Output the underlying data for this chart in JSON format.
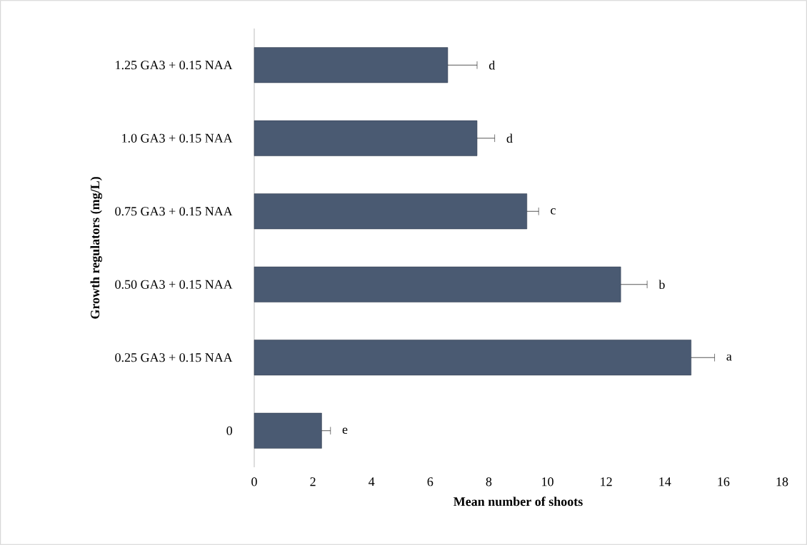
{
  "chart_data": {
    "type": "bar",
    "orientation": "horizontal",
    "xlabel": "Mean number  of shoots",
    "ylabel": "Growth regulators (mg/L)",
    "categories": [
      "1.25 GA3 + 0.15 NAA",
      "1.0 GA3 + 0.15 NAA",
      "0.75 GA3 + 0.15 NAA",
      "0.50 GA3 + 0.15 NAA",
      "0.25 GA3 + 0.15 NAA",
      "0"
    ],
    "values": [
      6.6,
      7.6,
      9.3,
      12.5,
      14.9,
      2.3
    ],
    "errors": [
      1.0,
      0.6,
      0.4,
      0.9,
      0.8,
      0.3
    ],
    "color": "#4a5a72",
    "xlim": [
      0,
      18
    ],
    "xticks": [
      0,
      2,
      4,
      6,
      8,
      10,
      12,
      14,
      16,
      18
    ],
    "grid": false,
    "annotations": [
      {
        "text": "d",
        "x": 7.6,
        "y": "1.25 GA3 + 0.15 NAA"
      },
      {
        "text": "d",
        "x": 8.2,
        "y": "1.0 GA3 + 0.15 NAA"
      },
      {
        "text": "c",
        "x": 9.7,
        "y": "0.75 GA3 + 0.15 NAA"
      },
      {
        "text": "b",
        "x": 13.4,
        "y": "0.50 GA3 + 0.15 NAA"
      },
      {
        "text": "a",
        "x": 15.7,
        "y": "0.25 GA3 + 0.15 NAA"
      },
      {
        "text": "e",
        "x": 2.6,
        "y": "0"
      }
    ]
  }
}
